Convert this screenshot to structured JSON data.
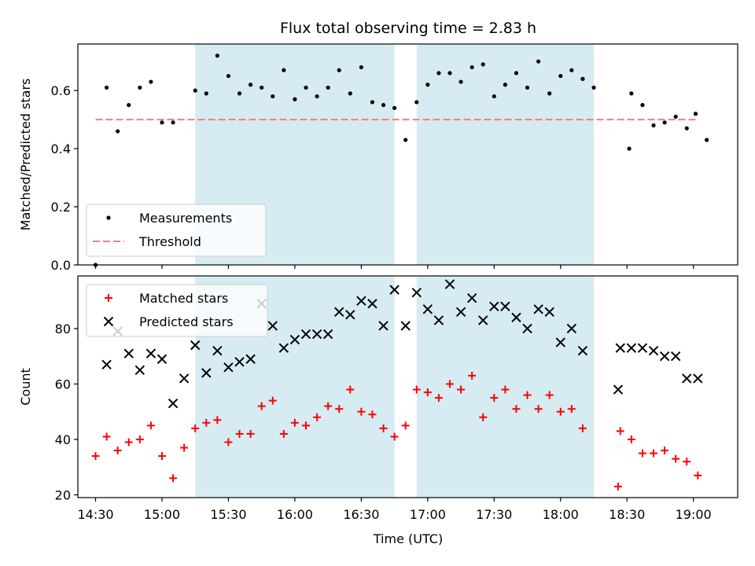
{
  "chart_data": {
    "type": "scatter",
    "title": "Flux total observing time = 2.83 h",
    "xlabel": "Time (UTC)",
    "x_tick_labels": [
      "14:30",
      "15:00",
      "15:30",
      "16:00",
      "16:30",
      "17:00",
      "17:30",
      "18:00",
      "18:30",
      "19:00"
    ],
    "x_tick_minutes": [
      870,
      900,
      930,
      960,
      990,
      1020,
      1050,
      1080,
      1110,
      1140
    ],
    "xlim_minutes": [
      862,
      1160
    ],
    "highlight_spans_minutes": [
      [
        915,
        1005
      ],
      [
        1015,
        1095
      ]
    ],
    "colors": {
      "measurements": "#000000",
      "threshold": "#f08080",
      "matched": "#ff0000",
      "predicted": "#000000",
      "span": "#add8e6"
    },
    "panels": [
      {
        "ylabel": "Matched/Predicted stars",
        "ylim": [
          0,
          0.76
        ],
        "y_ticks": [
          0.0,
          0.2,
          0.4,
          0.6
        ],
        "y_tick_labels": [
          "0.0",
          "0.2",
          "0.4",
          "0.6"
        ],
        "legend": [
          "Measurements",
          "Threshold"
        ],
        "legend_placement": "lower-left",
        "threshold": {
          "name": "Threshold",
          "value": 0.5,
          "x_range_minutes": [
            870,
            1141
          ]
        },
        "series": [
          {
            "name": "Measurements",
            "marker": "dot",
            "points": [
              [
                870,
                0.0
              ],
              [
                875,
                0.61
              ],
              [
                880,
                0.46
              ],
              [
                885,
                0.55
              ],
              [
                890,
                0.61
              ],
              [
                895,
                0.63
              ],
              [
                900,
                0.49
              ],
              [
                905,
                0.49
              ],
              [
                915,
                0.6
              ],
              [
                920,
                0.59
              ],
              [
                925,
                0.72
              ],
              [
                930,
                0.65
              ],
              [
                935,
                0.59
              ],
              [
                940,
                0.62
              ],
              [
                945,
                0.61
              ],
              [
                950,
                0.58
              ],
              [
                955,
                0.67
              ],
              [
                960,
                0.57
              ],
              [
                965,
                0.61
              ],
              [
                970,
                0.58
              ],
              [
                975,
                0.61
              ],
              [
                980,
                0.67
              ],
              [
                985,
                0.59
              ],
              [
                990,
                0.68
              ],
              [
                995,
                0.56
              ],
              [
                1000,
                0.55
              ],
              [
                1005,
                0.54
              ],
              [
                1010,
                0.43
              ],
              [
                1015,
                0.56
              ],
              [
                1020,
                0.62
              ],
              [
                1025,
                0.66
              ],
              [
                1030,
                0.66
              ],
              [
                1035,
                0.63
              ],
              [
                1040,
                0.68
              ],
              [
                1045,
                0.69
              ],
              [
                1050,
                0.58
              ],
              [
                1055,
                0.62
              ],
              [
                1060,
                0.66
              ],
              [
                1065,
                0.61
              ],
              [
                1070,
                0.7
              ],
              [
                1075,
                0.59
              ],
              [
                1080,
                0.65
              ],
              [
                1085,
                0.67
              ],
              [
                1090,
                0.64
              ],
              [
                1095,
                0.61
              ],
              [
                1111,
                0.4
              ],
              [
                1112,
                0.59
              ],
              [
                1117,
                0.55
              ],
              [
                1122,
                0.48
              ],
              [
                1127,
                0.49
              ],
              [
                1132,
                0.51
              ],
              [
                1137,
                0.47
              ],
              [
                1141,
                0.52
              ],
              [
                1146,
                0.43
              ]
            ]
          }
        ]
      },
      {
        "ylabel": "Count",
        "ylim": [
          19,
          99
        ],
        "y_ticks": [
          20,
          40,
          60,
          80
        ],
        "y_tick_labels": [
          "20",
          "40",
          "60",
          "80"
        ],
        "legend": [
          "Matched stars",
          "Predicted stars"
        ],
        "legend_placement": "upper-left",
        "series": [
          {
            "name": "Matched stars",
            "marker": "plus",
            "points": [
              [
                870,
                34
              ],
              [
                875,
                41
              ],
              [
                880,
                36
              ],
              [
                885,
                39
              ],
              [
                890,
                40
              ],
              [
                895,
                45
              ],
              [
                900,
                34
              ],
              [
                905,
                26
              ],
              [
                910,
                37
              ],
              [
                915,
                44
              ],
              [
                920,
                46
              ],
              [
                925,
                47
              ],
              [
                930,
                39
              ],
              [
                935,
                42
              ],
              [
                940,
                42
              ],
              [
                945,
                52
              ],
              [
                950,
                54
              ],
              [
                955,
                42
              ],
              [
                960,
                46
              ],
              [
                965,
                45
              ],
              [
                970,
                48
              ],
              [
                975,
                52
              ],
              [
                980,
                51
              ],
              [
                985,
                58
              ],
              [
                990,
                50
              ],
              [
                995,
                49
              ],
              [
                1000,
                44
              ],
              [
                1005,
                41
              ],
              [
                1010,
                45
              ],
              [
                1015,
                58
              ],
              [
                1020,
                57
              ],
              [
                1025,
                55
              ],
              [
                1030,
                60
              ],
              [
                1035,
                58
              ],
              [
                1040,
                63
              ],
              [
                1045,
                48
              ],
              [
                1050,
                55
              ],
              [
                1055,
                58
              ],
              [
                1060,
                51
              ],
              [
                1065,
                56
              ],
              [
                1070,
                51
              ],
              [
                1075,
                56
              ],
              [
                1080,
                50
              ],
              [
                1085,
                51
              ],
              [
                1090,
                44
              ],
              [
                1106,
                23
              ],
              [
                1107,
                43
              ],
              [
                1112,
                40
              ],
              [
                1117,
                35
              ],
              [
                1122,
                35
              ],
              [
                1127,
                36
              ],
              [
                1132,
                33
              ],
              [
                1137,
                32
              ],
              [
                1142,
                27
              ]
            ]
          },
          {
            "name": "Predicted stars",
            "marker": "x",
            "points": [
              [
                875,
                67
              ],
              [
                880,
                79
              ],
              [
                885,
                71
              ],
              [
                890,
                65
              ],
              [
                895,
                71
              ],
              [
                900,
                69
              ],
              [
                905,
                53
              ],
              [
                910,
                62
              ],
              [
                915,
                74
              ],
              [
                920,
                64
              ],
              [
                925,
                72
              ],
              [
                930,
                66
              ],
              [
                935,
                68
              ],
              [
                940,
                69
              ],
              [
                945,
                89
              ],
              [
                950,
                81
              ],
              [
                955,
                73
              ],
              [
                960,
                76
              ],
              [
                965,
                78
              ],
              [
                970,
                78
              ],
              [
                975,
                78
              ],
              [
                980,
                86
              ],
              [
                985,
                85
              ],
              [
                990,
                90
              ],
              [
                995,
                89
              ],
              [
                1000,
                81
              ],
              [
                1005,
                94
              ],
              [
                1010,
                81
              ],
              [
                1015,
                93
              ],
              [
                1020,
                87
              ],
              [
                1025,
                83
              ],
              [
                1030,
                96
              ],
              [
                1035,
                86
              ],
              [
                1040,
                91
              ],
              [
                1045,
                83
              ],
              [
                1050,
                88
              ],
              [
                1055,
                88
              ],
              [
                1060,
                84
              ],
              [
                1065,
                80
              ],
              [
                1070,
                87
              ],
              [
                1075,
                86
              ],
              [
                1080,
                75
              ],
              [
                1085,
                80
              ],
              [
                1090,
                72
              ],
              [
                1106,
                58
              ],
              [
                1107,
                73
              ],
              [
                1112,
                73
              ],
              [
                1117,
                73
              ],
              [
                1122,
                72
              ],
              [
                1127,
                70
              ],
              [
                1132,
                70
              ],
              [
                1137,
                62
              ],
              [
                1142,
                62
              ]
            ]
          }
        ]
      }
    ]
  }
}
